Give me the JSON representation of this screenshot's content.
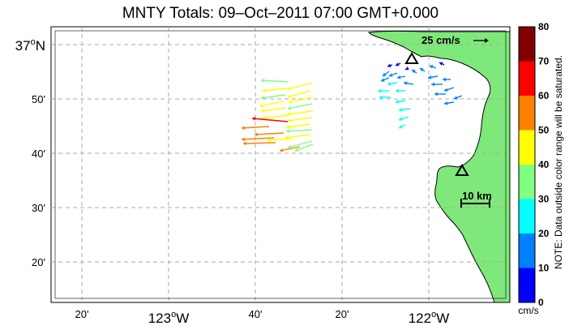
{
  "title": "MNTY Totals: 09–Oct–2011 07:00 GMT+0.000",
  "axes": {
    "x_ticks": [
      {
        "major": "",
        "minor": "20'"
      },
      {
        "major": "123",
        "minor": ""
      },
      {
        "major": "",
        "minor": "40'"
      },
      {
        "major": "",
        "minor": "20'"
      },
      {
        "major": "122",
        "minor": ""
      }
    ],
    "x_hemisphere": "W",
    "y_ticks": [
      {
        "major": "37",
        "minor": ""
      },
      {
        "major": "",
        "minor": "50'"
      },
      {
        "major": "",
        "minor": "40'"
      },
      {
        "major": "",
        "minor": "30'"
      },
      {
        "major": "",
        "minor": "20'"
      }
    ],
    "y_hemisphere": "N",
    "degree_symbol": "o"
  },
  "reference_vector": {
    "label": "25 cm/s"
  },
  "scale_bar": {
    "label": "10 km"
  },
  "colorbar": {
    "ticks": [
      "0",
      "10",
      "20",
      "30",
      "40",
      "50",
      "60",
      "70",
      "80"
    ],
    "units": "cm/s",
    "note": "NOTE: Data outside color range will be saturated.",
    "colors": [
      "#0000ff",
      "#0080ff",
      "#00ffff",
      "#80ff80",
      "#ffff00",
      "#ff8000",
      "#ff0000",
      "#800000"
    ]
  },
  "colors": {
    "land": "#7fe87a",
    "coast": "#000000",
    "grid": "#aaaaaa",
    "station": "#000000"
  }
}
